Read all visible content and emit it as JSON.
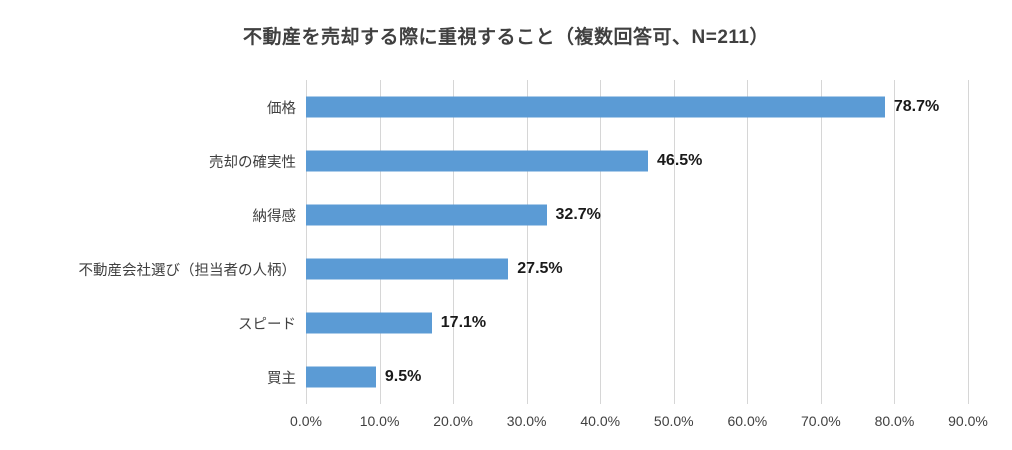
{
  "title": "不動産を売却する際に重視すること（複数回答可、N=211）",
  "chart_data": {
    "type": "bar",
    "orientation": "horizontal",
    "title": "不動産を売却する際に重視すること（複数回答可、N=211）",
    "categories": [
      "価格",
      "売却の確実性",
      "納得感",
      "不動産会社選び（担当者の人柄）",
      "スピード",
      "買主"
    ],
    "values": [
      78.7,
      46.5,
      32.7,
      27.5,
      17.1,
      9.5
    ],
    "value_labels": [
      "78.7%",
      "46.5%",
      "32.7%",
      "27.5%",
      "17.1%",
      "9.5%"
    ],
    "xlabel": "",
    "ylabel": "",
    "xlim": [
      0,
      90
    ],
    "x_ticks": [
      "0.0%",
      "10.0%",
      "20.0%",
      "30.0%",
      "40.0%",
      "50.0%",
      "60.0%",
      "70.0%",
      "80.0%",
      "90.0%"
    ],
    "grid": true,
    "legend": "none",
    "bar_color": "#5b9bd5",
    "gridline_color": "#d6d6d6"
  }
}
